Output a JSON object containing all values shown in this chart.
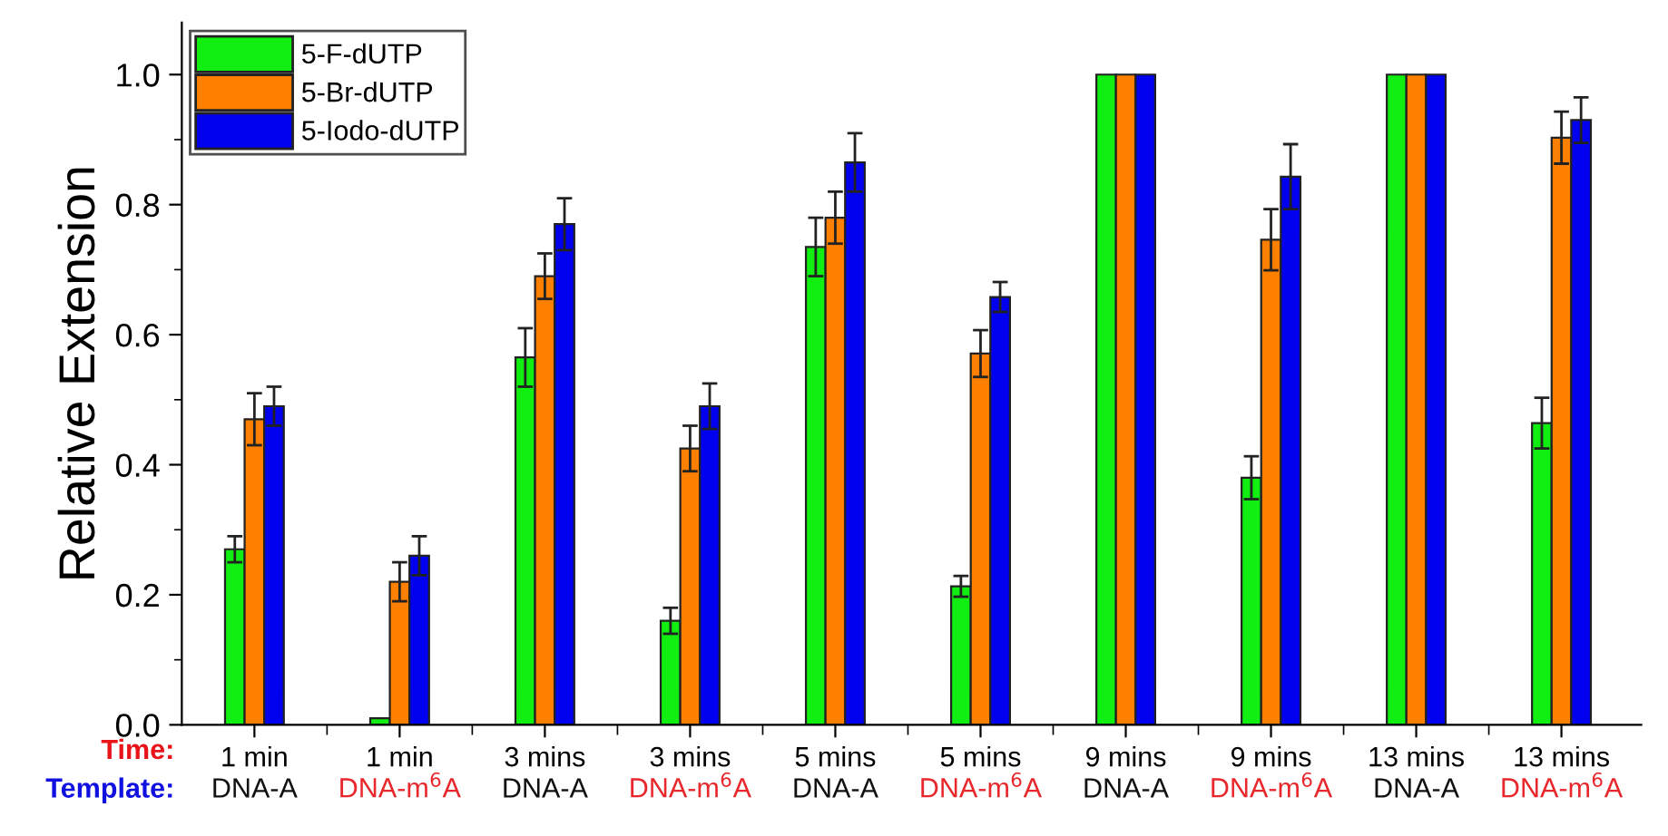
{
  "chart_data": {
    "type": "bar",
    "ylabel": "Relative Extension",
    "categories": [
      "1 min\nDNA-A",
      "1 min\nDNA-m$^{6}$A",
      "3 mins\nDNA-A",
      "3 mins\nDNA-m$^{6}$A",
      "5 mins\nDNA-A",
      "5 mins\nDNA-m$^{6}$A",
      "9 mins\nDNA-A",
      "9 mins\nDNA-m$^{6}$A",
      "13 mins\nDNA-A",
      "13 mins\nDNA-m$^{6}$A"
    ],
    "series": [
      {
        "name": "5-F-dUTP",
        "color": "#11ee11",
        "values": [
          0.27,
          0.01,
          0.565,
          0.16,
          0.735,
          0.213,
          1.0,
          0.38,
          1.0,
          0.464
        ],
        "errors": [
          0.02,
          null,
          0.045,
          0.02,
          0.045,
          0.016,
          null,
          0.033,
          null,
          0.039
        ]
      },
      {
        "name": "5-Br-dUTP",
        "color": "#ff8000",
        "values": [
          0.47,
          0.22,
          0.69,
          0.425,
          0.78,
          0.571,
          1.0,
          0.746,
          1.0,
          0.903
        ],
        "errors": [
          0.04,
          0.03,
          0.035,
          0.035,
          0.04,
          0.036,
          null,
          0.047,
          null,
          0.04
        ]
      },
      {
        "name": "5-Iodo-dUTP",
        "color": "#0000ee",
        "values": [
          0.49,
          0.26,
          0.77,
          0.49,
          0.865,
          0.658,
          1.0,
          0.843,
          1.0,
          0.93
        ],
        "errors": [
          0.03,
          0.03,
          0.04,
          0.035,
          0.045,
          0.023,
          null,
          0.05,
          null,
          0.035
        ]
      }
    ],
    "ylim": [
      0,
      1.08
    ],
    "yticks": [
      {
        "value": 0,
        "label": "0.0"
      },
      0.2,
      0.4,
      0.6,
      0.8,
      {
        "value": 1,
        "label": "1.0"
      }
    ],
    "annotations": [
      "Time:",
      "Template:"
    ],
    "legend": "top left",
    "grid": false
  }
}
